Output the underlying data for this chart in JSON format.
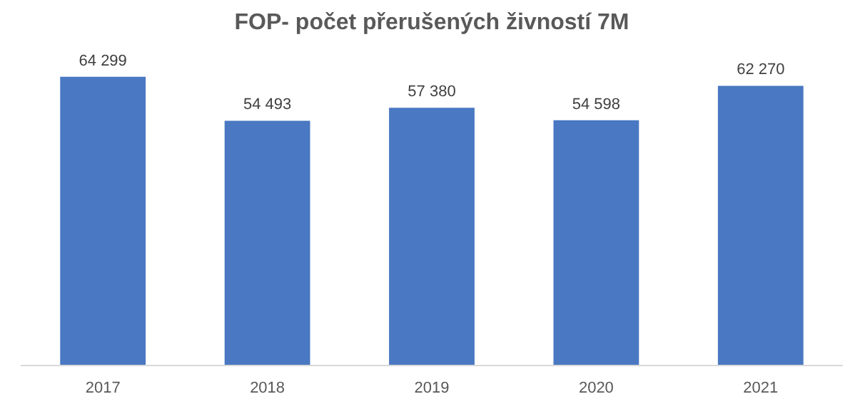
{
  "chart_data": {
    "type": "bar",
    "title": "FOP- počet přerušených živností 7M",
    "categories": [
      "2017",
      "2018",
      "2019",
      "2020",
      "2021"
    ],
    "values": [
      64299,
      54493,
      57380,
      54598,
      62270
    ],
    "color": "#4a78c2",
    "data_labels": true
  }
}
